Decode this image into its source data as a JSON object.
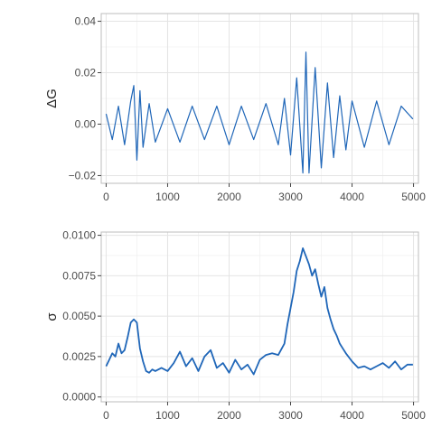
{
  "chart_data": [
    {
      "type": "line",
      "ylabel": "ΔG",
      "xlim": [
        -80,
        5080
      ],
      "ylim": [
        -0.023,
        0.043
      ],
      "x_ticks": [
        0,
        1000,
        2000,
        3000,
        4000,
        5000
      ],
      "x_tick_labels": [
        "0",
        "1000",
        "2000",
        "3000",
        "4000",
        "5000"
      ],
      "y_ticks": [
        -0.02,
        0.0,
        0.02,
        0.04
      ],
      "y_tick_labels": [
        "−0.02",
        "0.00",
        "0.02",
        "0.04"
      ],
      "grid": true,
      "line_color": "#1f66b8",
      "series": [
        {
          "x": [
            0,
            100,
            200,
            300,
            400,
            450,
            500,
            550,
            600,
            700,
            800,
            1000,
            1200,
            1400,
            1600,
            1800,
            2000,
            2200,
            2400,
            2600,
            2800,
            2900,
            3000,
            3100,
            3200,
            3250,
            3300,
            3400,
            3500,
            3600,
            3700,
            3800,
            3900,
            4000,
            4200,
            4400,
            4600,
            4800,
            4990
          ],
          "values": [
            0.004,
            -0.006,
            0.007,
            -0.008,
            0.009,
            0.015,
            -0.014,
            0.013,
            -0.009,
            0.008,
            -0.007,
            0.006,
            -0.007,
            0.007,
            -0.006,
            0.007,
            -0.008,
            0.007,
            -0.006,
            0.008,
            -0.008,
            0.01,
            -0.012,
            0.018,
            -0.019,
            0.028,
            -0.019,
            0.022,
            -0.017,
            0.016,
            -0.013,
            0.011,
            -0.01,
            0.009,
            -0.009,
            0.009,
            -0.008,
            0.007,
            0.002
          ]
        }
      ]
    },
    {
      "type": "line",
      "ylabel": "σ",
      "xlim": [
        -80,
        5080
      ],
      "ylim": [
        -0.0003,
        0.0102
      ],
      "x_ticks": [
        0,
        1000,
        2000,
        3000,
        4000,
        5000
      ],
      "x_tick_labels": [
        "0",
        "1000",
        "2000",
        "3000",
        "4000",
        "5000"
      ],
      "y_ticks": [
        0.0,
        0.0025,
        0.005,
        0.0075,
        0.01
      ],
      "y_tick_labels": [
        "0.0000",
        "0.0025",
        "0.0050",
        "0.0075",
        "0.0100"
      ],
      "grid": true,
      "line_color": "#1f66b8",
      "series": [
        {
          "x": [
            0,
            50,
            100,
            150,
            200,
            250,
            300,
            350,
            400,
            450,
            500,
            550,
            600,
            650,
            700,
            750,
            800,
            900,
            1000,
            1100,
            1200,
            1300,
            1400,
            1500,
            1600,
            1700,
            1800,
            1900,
            2000,
            2100,
            2200,
            2300,
            2400,
            2500,
            2600,
            2700,
            2800,
            2900,
            2950,
            3000,
            3050,
            3100,
            3150,
            3200,
            3250,
            3300,
            3350,
            3400,
            3450,
            3500,
            3550,
            3600,
            3650,
            3700,
            3750,
            3800,
            3900,
            4000,
            4100,
            4200,
            4300,
            4400,
            4500,
            4600,
            4700,
            4800,
            4900,
            4990
          ],
          "values": [
            0.0019,
            0.0023,
            0.0027,
            0.0025,
            0.0033,
            0.0027,
            0.0029,
            0.0037,
            0.0046,
            0.0048,
            0.0046,
            0.003,
            0.0022,
            0.0016,
            0.0015,
            0.0017,
            0.0016,
            0.0018,
            0.0016,
            0.0021,
            0.0028,
            0.0019,
            0.0024,
            0.0016,
            0.0025,
            0.0029,
            0.0018,
            0.0021,
            0.0015,
            0.0023,
            0.0017,
            0.002,
            0.0014,
            0.0023,
            0.0026,
            0.0027,
            0.0026,
            0.0033,
            0.0045,
            0.0055,
            0.0065,
            0.0078,
            0.0084,
            0.0092,
            0.0087,
            0.0082,
            0.0075,
            0.0079,
            0.007,
            0.0062,
            0.0068,
            0.0055,
            0.0048,
            0.0042,
            0.0038,
            0.0033,
            0.0027,
            0.0022,
            0.0018,
            0.0019,
            0.0017,
            0.0019,
            0.0021,
            0.0018,
            0.0022,
            0.0017,
            0.002,
            0.002
          ]
        }
      ]
    }
  ]
}
